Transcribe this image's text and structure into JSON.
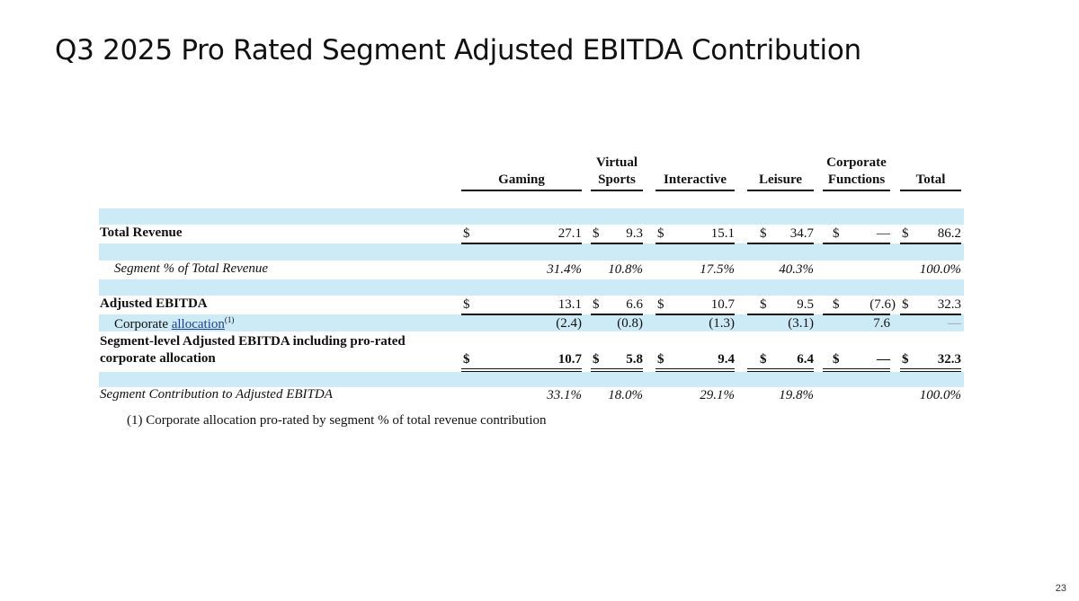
{
  "title": "Q3 2025 Pro Rated Segment Adjusted EBITDA Contribution",
  "page_number": "23",
  "columns": [
    {
      "line1": "",
      "line2": "Gaming"
    },
    {
      "line1": "Virtual",
      "line2": "Sports"
    },
    {
      "line1": "",
      "line2": "Interactive"
    },
    {
      "line1": "",
      "line2": "Leisure"
    },
    {
      "line1": "Corporate",
      "line2": "Functions"
    },
    {
      "line1": "",
      "line2": "Total"
    }
  ],
  "rows": {
    "total_revenue": {
      "label": "Total Revenue",
      "dollar": [
        "$",
        "$",
        "$",
        "$",
        "$",
        "$"
      ],
      "values": [
        "27.1",
        "9.3",
        "15.1",
        "34.7",
        "—",
        "86.2"
      ]
    },
    "segment_pct": {
      "label": "Segment % of Total Revenue",
      "values": [
        "31.4%",
        "10.8%",
        "17.5%",
        "40.3%",
        "",
        "100.0%"
      ]
    },
    "adjusted_ebitda": {
      "label": "Adjusted EBITDA",
      "dollar": [
        "$",
        "$",
        "$",
        "$",
        "$",
        "$"
      ],
      "values": [
        "13.1",
        "6.6",
        "10.7",
        "9.5",
        "(7.6)",
        "32.3"
      ]
    },
    "corporate_allocation": {
      "label_prefix": "Corporate ",
      "label_link": "allocation",
      "footnote_ref": "(1)",
      "values": [
        "(2.4)",
        "(0.8)",
        "(1.3)",
        "(3.1)",
        "7.6",
        "—"
      ]
    },
    "segment_level": {
      "label_line1": "Segment-level Adjusted EBITDA including pro-rated",
      "label_line2": "corporate allocation",
      "dollar": [
        "$",
        "$",
        "$",
        "$",
        "$",
        "$"
      ],
      "values": [
        "10.7",
        "5.8",
        "9.4",
        "6.4",
        "—",
        "32.3"
      ]
    },
    "segment_contribution": {
      "label": "Segment Contribution to Adjusted EBITDA",
      "values": [
        "33.1%",
        "18.0%",
        "29.1%",
        "19.8%",
        "",
        "100.0%"
      ]
    }
  },
  "footnote": "(1)  Corporate allocation pro-rated by segment % of total revenue contribution",
  "colors": {
    "band": "#cdeaf7",
    "link": "#1f3f8f"
  }
}
